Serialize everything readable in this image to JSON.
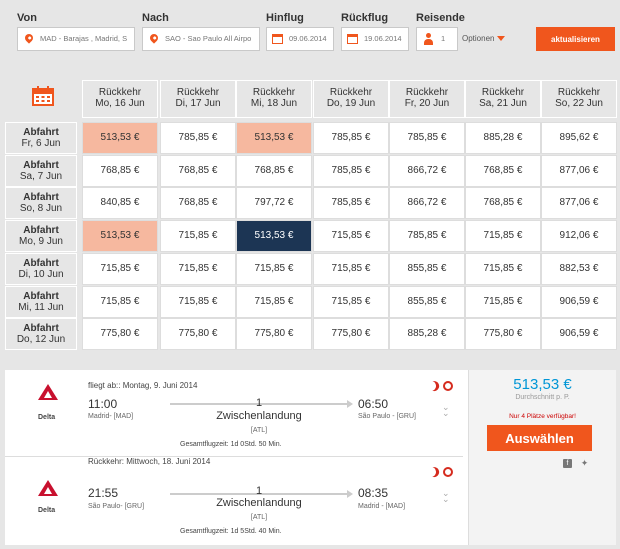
{
  "search": {
    "from_label": "Von",
    "to_label": "Nach",
    "depart_label": "Hinflug",
    "return_label": "Rückflug",
    "travelers_label": "Reisende",
    "from_value": "MAD - Barajas , Madrid, S",
    "to_value": "SAO - Sao Paulo All Airpo",
    "depart_value": "09.06.2014",
    "return_value": "19.06.2014",
    "travelers_value": "1",
    "options_label": "Optionen",
    "update_label": "aktualisieren"
  },
  "grid": {
    "return_headers": [
      {
        "l1": "Rückkehr",
        "l2": "Mo, 16 Jun"
      },
      {
        "l1": "Rückkehr",
        "l2": "Di, 17 Jun"
      },
      {
        "l1": "Rückkehr",
        "l2": "Mi, 18 Jun"
      },
      {
        "l1": "Rückkehr",
        "l2": "Do, 19 Jun"
      },
      {
        "l1": "Rückkehr",
        "l2": "Fr, 20 Jun"
      },
      {
        "l1": "Rückkehr",
        "l2": "Sa, 21 Jun"
      },
      {
        "l1": "Rückkehr",
        "l2": "So, 22 Jun"
      }
    ],
    "depart_headers": [
      {
        "l1": "Abfahrt",
        "l2": "Fr, 6 Jun"
      },
      {
        "l1": "Abfahrt",
        "l2": "Sa, 7 Jun"
      },
      {
        "l1": "Abfahrt",
        "l2": "So, 8 Jun"
      },
      {
        "l1": "Abfahrt",
        "l2": "Mo, 9 Jun"
      },
      {
        "l1": "Abfahrt",
        "l2": "Di, 10 Jun"
      },
      {
        "l1": "Abfahrt",
        "l2": "Mi, 11 Jun"
      },
      {
        "l1": "Abfahrt",
        "l2": "Do, 12 Jun"
      }
    ],
    "rows": [
      [
        "513,53 €",
        "785,85 €",
        "513,53 €",
        "785,85 €",
        "785,85 €",
        "885,28 €",
        "895,62 €"
      ],
      [
        "768,85 €",
        "768,85 €",
        "768,85 €",
        "785,85 €",
        "866,72 €",
        "768,85 €",
        "877,06 €"
      ],
      [
        "840,85 €",
        "768,85 €",
        "797,72 €",
        "785,85 €",
        "866,72 €",
        "768,85 €",
        "877,06 €"
      ],
      [
        "513,53 €",
        "715,85 €",
        "513,53 €",
        "715,85 €",
        "785,85 €",
        "715,85 €",
        "912,06 €"
      ],
      [
        "715,85 €",
        "715,85 €",
        "715,85 €",
        "715,85 €",
        "855,85 €",
        "715,85 €",
        "882,53 €"
      ],
      [
        "715,85 €",
        "715,85 €",
        "715,85 €",
        "715,85 €",
        "855,85 €",
        "715,85 €",
        "906,59 €"
      ],
      [
        "775,80 €",
        "775,80 €",
        "775,80 €",
        "775,80 €",
        "885,28 €",
        "775,80 €",
        "906,59 €"
      ]
    ],
    "highlight_cheap": [
      [
        0,
        0
      ],
      [
        0,
        2
      ],
      [
        3,
        0
      ]
    ],
    "selected": [
      3,
      2
    ],
    "colors": {
      "cheap": "#f6b89f",
      "selected": "#1c3554",
      "accent": "#f0561d"
    }
  },
  "outbound": {
    "airline": "Delta",
    "heading": "fliegt ab:: Montag, 9. Juni 2014",
    "dep_time": "11:00",
    "dep_city": "Madrid- [MAD]",
    "stops": "1",
    "stops_label": "Zwischenlandung",
    "via": "[ATL]",
    "arr_time": "06:50",
    "arr_city": "São Paulo - [GRU]",
    "total": "Gesamtflugzeit: 1d 0Std. 50 Min."
  },
  "inbound": {
    "airline": "Delta",
    "heading": "Rückkehr: Mittwoch, 18. Juni 2014",
    "dep_time": "21:55",
    "dep_city": "São Paulo- [GRU]",
    "stops": "1",
    "stops_label": "Zwischenlandung",
    "via": "[ATL]",
    "arr_time": "08:35",
    "arr_city": "Madrid - [MAD]",
    "total": "Gesamtflugzeit: 1d 5Std. 40 Min."
  },
  "price_box": {
    "price": "513,53 €",
    "per_person": "Durchschnitt p. P.",
    "seats_left": "Nur 4 Plätze verfügbar!",
    "choose_label": "Auswählen",
    "price_color": "#0096d6"
  }
}
